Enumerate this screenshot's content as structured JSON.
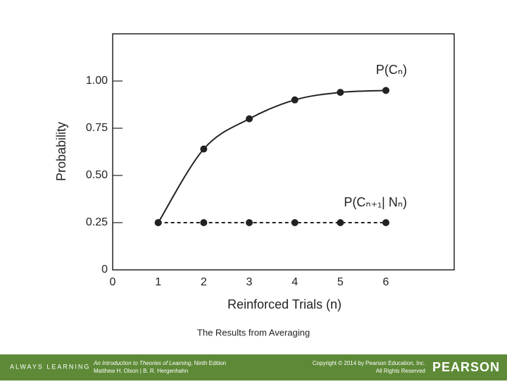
{
  "chart_data": {
    "type": "line",
    "x_label": "Reinforced Trials (n)",
    "y_label": "Probability",
    "x": [
      1,
      2,
      3,
      4,
      5,
      6
    ],
    "series": [
      {
        "name": "P(Cₙ)",
        "color": "#222222",
        "style": "solid",
        "values": [
          0.25,
          0.64,
          0.8,
          0.9,
          0.94,
          0.95
        ]
      },
      {
        "name": "P(Cₙ₊₁| Nₙ)",
        "color": "#222222",
        "style": "dashed",
        "values": [
          0.25,
          0.25,
          0.25,
          0.25,
          0.25,
          0.25
        ]
      }
    ],
    "xlim": [
      0,
      7.5
    ],
    "xticks": [
      0,
      1,
      2,
      3,
      4,
      5,
      6
    ],
    "ylim": [
      0,
      1.25
    ],
    "yticks": [
      0,
      0.25,
      {
        "value": 0.5,
        "label": "0.50"
      },
      0.75,
      {
        "value": 1,
        "label": "1.00"
      }
    ],
    "grid": false
  },
  "caption": "The Results from Averaging",
  "footer": {
    "brand_left": "ALWAYS LEARNING",
    "book_title": "An Introduction to Theories of Learning",
    "edition": ", Ninth Edition",
    "authors": "Matthew H. Olson | B. R. Hergenhahn",
    "copyright": "Copyright © 2014 by Pearson Education, Inc.",
    "rights": "All Rights Reserved",
    "brand_right": "PEARSON"
  }
}
